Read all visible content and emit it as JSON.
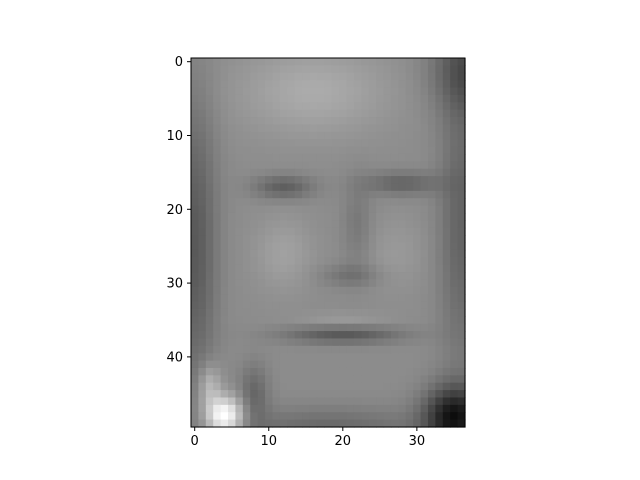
{
  "chart_data": {
    "type": "heatmap",
    "colormap": "gray",
    "rows": 50,
    "cols": 37,
    "xticks": [
      0,
      10,
      20,
      30
    ],
    "yticks": [
      0,
      10,
      20,
      30,
      40
    ],
    "xlim": [
      -0.5,
      36.5
    ],
    "ylim": [
      49.5,
      -0.5
    ],
    "description_source": "grayscale image of a face rendered with imshow; pixel intensities are approximated"
  }
}
